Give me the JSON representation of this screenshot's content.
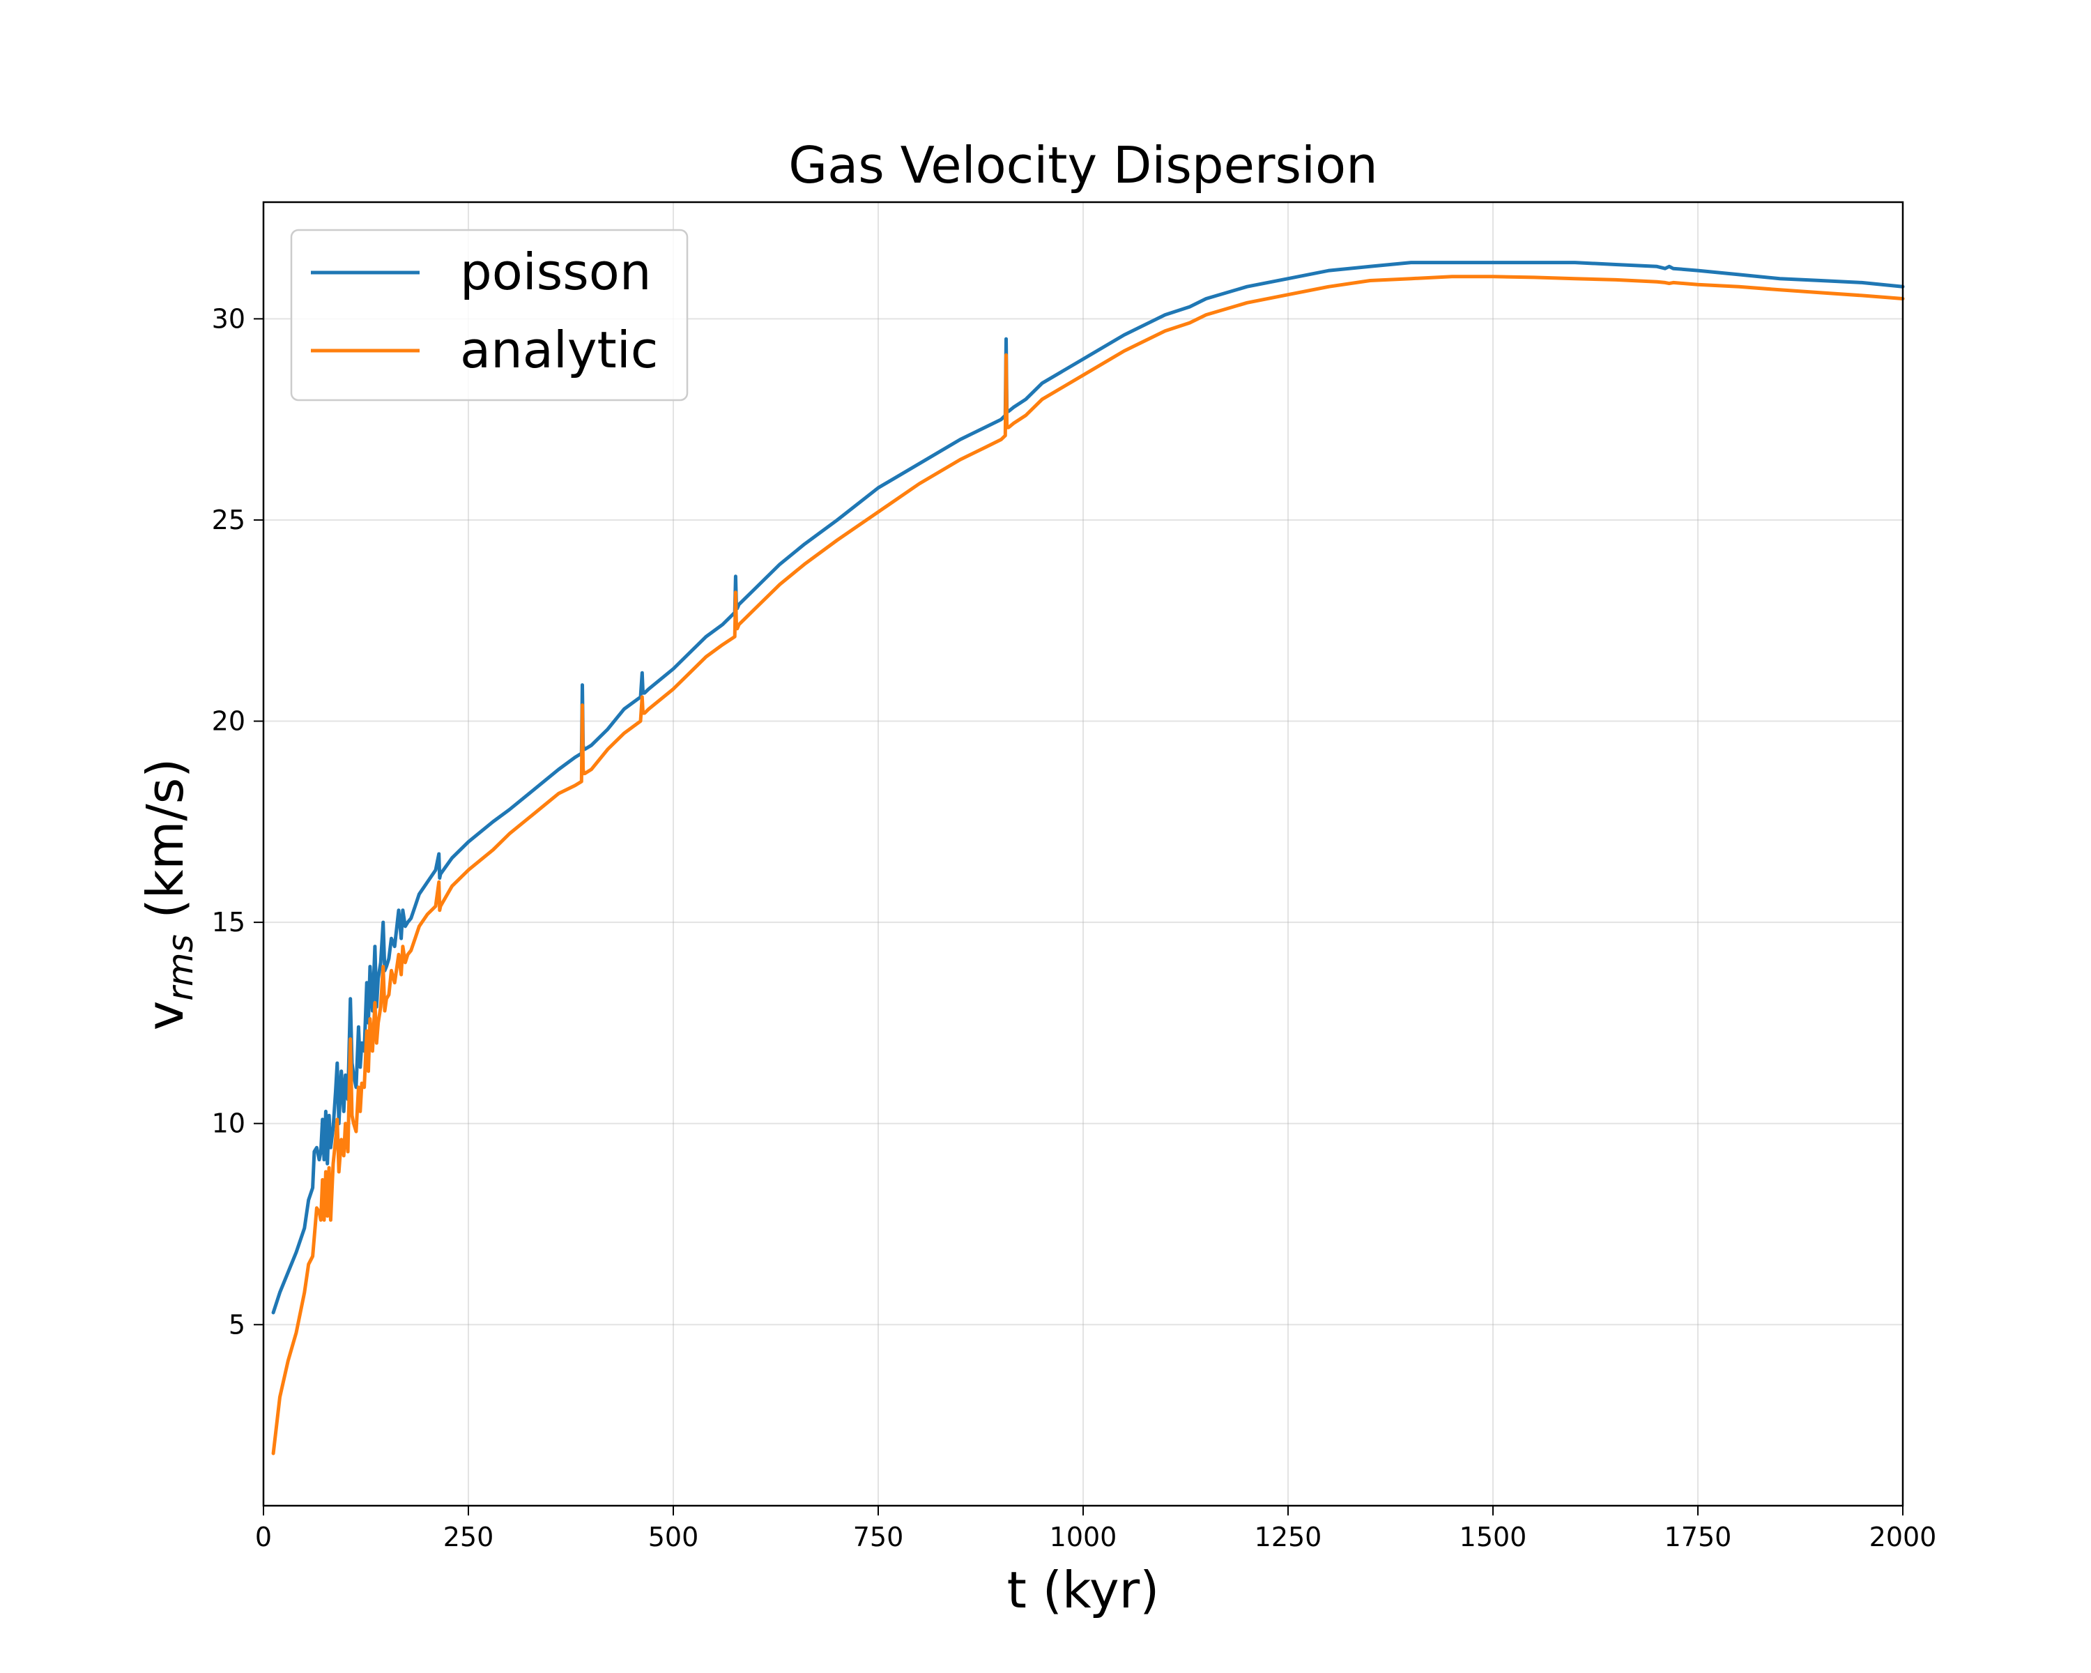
{
  "chart_data": {
    "type": "line",
    "title": "Gas Velocity Dispersion",
    "xlabel": "t (kyr)",
    "ylabel_main": "v",
    "ylabel_sub": "rms",
    "ylabel_rest": " (km/s)",
    "xlim": [
      0,
      2000
    ],
    "ylim": [
      0.5,
      32.9
    ],
    "xticks": [
      0,
      250,
      500,
      750,
      1000,
      1250,
      1500,
      1750,
      2000
    ],
    "yticks": [
      5,
      10,
      15,
      20,
      25,
      30
    ],
    "grid": true,
    "legend_position": "top-left",
    "series": [
      {
        "name": "poisson",
        "color": "#1f77b4",
        "x": [
          12,
          20,
          30,
          40,
          50,
          55,
          60,
          62,
          65,
          68,
          70,
          72,
          74,
          76,
          78,
          80,
          82,
          85,
          88,
          90,
          92,
          95,
          98,
          100,
          103,
          106,
          108,
          110,
          113,
          116,
          118,
          120,
          123,
          126,
          128,
          130,
          133,
          136,
          138,
          140,
          143,
          146,
          148,
          150,
          153,
          156,
          160,
          165,
          168,
          170,
          173,
          176,
          180,
          185,
          190,
          200,
          210,
          214,
          215,
          216,
          230,
          250,
          280,
          300,
          330,
          360,
          380,
          388,
          389,
          390,
          391,
          392,
          400,
          420,
          440,
          460,
          462,
          463,
          464,
          465,
          470,
          500,
          520,
          540,
          560,
          575,
          576,
          577,
          578,
          580,
          600,
          630,
          660,
          700,
          750,
          800,
          850,
          880,
          900,
          905,
          906,
          907,
          908,
          909,
          915,
          930,
          950,
          975,
          1000,
          1050,
          1100,
          1130,
          1150,
          1200,
          1250,
          1300,
          1350,
          1400,
          1450,
          1500,
          1550,
          1600,
          1650,
          1700,
          1710,
          1715,
          1720,
          1750,
          1800,
          1850,
          1900,
          1950,
          2000
        ],
        "y": [
          5.3,
          5.8,
          6.3,
          6.8,
          7.4,
          8.1,
          8.4,
          9.3,
          9.4,
          9.1,
          9.3,
          10.1,
          9.1,
          10.3,
          9.0,
          10.2,
          9.4,
          9.9,
          10.8,
          11.5,
          10.0,
          11.3,
          10.3,
          11.2,
          10.6,
          13.1,
          11.5,
          11.2,
          10.9,
          12.4,
          11.4,
          12.0,
          11.8,
          13.5,
          12.5,
          13.9,
          12.8,
          14.4,
          12.9,
          13.6,
          14.0,
          15.0,
          13.8,
          13.9,
          14.1,
          14.6,
          14.4,
          15.3,
          14.6,
          15.3,
          14.9,
          15.0,
          15.1,
          15.4,
          15.7,
          16.0,
          16.3,
          16.7,
          16.1,
          16.2,
          16.6,
          17.0,
          17.5,
          17.8,
          18.3,
          18.8,
          19.1,
          19.2,
          20.9,
          19.4,
          19.3,
          19.3,
          19.4,
          19.8,
          20.3,
          20.6,
          21.2,
          20.7,
          20.7,
          20.7,
          20.8,
          21.3,
          21.7,
          22.1,
          22.4,
          22.7,
          23.6,
          22.8,
          22.8,
          22.9,
          23.3,
          23.9,
          24.4,
          25.0,
          25.8,
          26.4,
          27.0,
          27.3,
          27.5,
          27.6,
          29.5,
          27.7,
          27.7,
          27.7,
          27.8,
          28.0,
          28.4,
          28.7,
          29.0,
          29.6,
          30.1,
          30.3,
          30.5,
          30.8,
          31.0,
          31.2,
          31.3,
          31.4,
          31.4,
          31.4,
          31.4,
          31.4,
          31.35,
          31.3,
          31.25,
          31.3,
          31.25,
          31.2,
          31.1,
          31.0,
          30.95,
          30.9,
          30.8
        ]
      },
      {
        "name": "analytic",
        "color": "#ff7f0e",
        "x": [
          12,
          20,
          30,
          40,
          50,
          55,
          60,
          65,
          68,
          70,
          72,
          74,
          76,
          78,
          80,
          82,
          85,
          88,
          90,
          92,
          95,
          98,
          100,
          103,
          106,
          108,
          110,
          113,
          116,
          118,
          120,
          123,
          126,
          128,
          130,
          133,
          136,
          138,
          140,
          143,
          146,
          148,
          150,
          153,
          156,
          160,
          165,
          168,
          170,
          173,
          176,
          180,
          185,
          190,
          200,
          210,
          214,
          215,
          216,
          230,
          250,
          280,
          300,
          330,
          360,
          380,
          388,
          389,
          390,
          391,
          392,
          400,
          420,
          440,
          460,
          462,
          463,
          464,
          465,
          470,
          500,
          520,
          540,
          560,
          575,
          576,
          577,
          578,
          580,
          600,
          630,
          660,
          700,
          750,
          800,
          850,
          880,
          900,
          905,
          906,
          907,
          908,
          909,
          915,
          930,
          950,
          975,
          1000,
          1050,
          1100,
          1130,
          1150,
          1200,
          1250,
          1300,
          1350,
          1400,
          1450,
          1500,
          1550,
          1600,
          1650,
          1700,
          1710,
          1715,
          1720,
          1750,
          1800,
          1850,
          1900,
          1950,
          2000
        ],
        "y": [
          1.8,
          3.2,
          4.1,
          4.8,
          5.8,
          6.5,
          6.7,
          7.9,
          7.8,
          7.6,
          8.6,
          7.6,
          8.8,
          7.7,
          8.9,
          7.6,
          9.0,
          9.6,
          10.1,
          8.8,
          9.6,
          9.2,
          10.0,
          9.3,
          12.1,
          10.2,
          10.0,
          9.8,
          10.9,
          10.3,
          11.0,
          10.9,
          12.3,
          11.3,
          12.6,
          11.8,
          13.0,
          12.0,
          12.5,
          12.9,
          13.9,
          12.8,
          13.1,
          13.2,
          13.8,
          13.5,
          14.2,
          13.7,
          14.4,
          14.0,
          14.2,
          14.3,
          14.6,
          14.9,
          15.2,
          15.4,
          16.0,
          15.3,
          15.4,
          15.9,
          16.3,
          16.8,
          17.2,
          17.7,
          18.2,
          18.4,
          18.5,
          20.4,
          18.8,
          18.7,
          18.7,
          18.8,
          19.3,
          19.7,
          20.0,
          20.6,
          20.2,
          20.2,
          20.2,
          20.3,
          20.8,
          21.2,
          21.6,
          21.9,
          22.1,
          23.2,
          22.3,
          22.3,
          22.4,
          22.8,
          23.4,
          23.9,
          24.5,
          25.2,
          25.9,
          26.5,
          26.8,
          27.0,
          27.1,
          29.1,
          27.3,
          27.3,
          27.3,
          27.4,
          27.6,
          28.0,
          28.3,
          28.6,
          29.2,
          29.7,
          29.9,
          30.1,
          30.4,
          30.6,
          30.8,
          30.95,
          31.0,
          31.05,
          31.05,
          31.03,
          31.0,
          30.97,
          30.92,
          30.9,
          30.88,
          30.9,
          30.85,
          30.8,
          30.72,
          30.65,
          30.58,
          30.5
        ]
      }
    ]
  }
}
